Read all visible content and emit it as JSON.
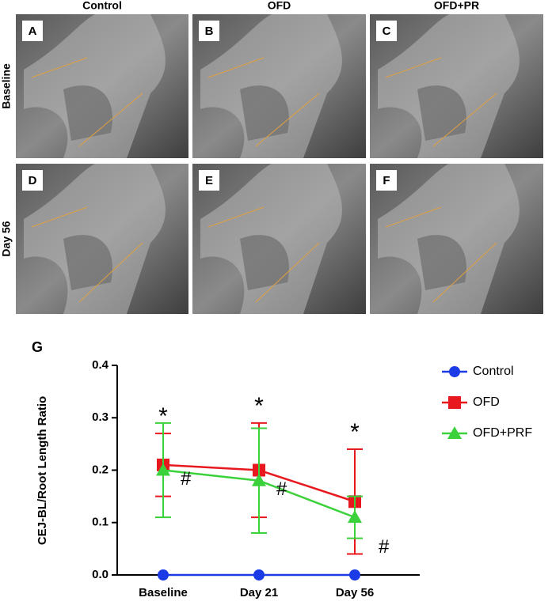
{
  "panels": {
    "columns": [
      "Control",
      "OFD",
      "OFD+PR"
    ],
    "rows": [
      "Baseline",
      "Day 56"
    ],
    "letters": [
      "A",
      "B",
      "C",
      "D",
      "E",
      "F"
    ]
  },
  "chart_data": {
    "type": "line",
    "panel_label": "G",
    "y_label": "CEJ-BL/Root Length Ratio",
    "categories": [
      "Baseline",
      "Day 21",
      "Day 56"
    ],
    "ylim": [
      0,
      0.4
    ],
    "yticks": [
      {
        "value": 0,
        "label": "0.0"
      },
      0.1,
      0.2,
      0.3,
      0.4
    ],
    "legend": "right",
    "series": [
      {
        "name": "Control",
        "color": "#1a3be6",
        "marker": "circle",
        "values": [
          0,
          0,
          0
        ]
      },
      {
        "name": "OFD",
        "color": "#e8191e",
        "marker": "square",
        "values": [
          0.21,
          0.2,
          0.14
        ],
        "errors": [
          0.06,
          0.09,
          0.1
        ],
        "annotations": [
          "*",
          "*",
          "*"
        ]
      },
      {
        "name": "OFD+PRF",
        "color": "#3ad13a",
        "marker": "triangle",
        "values": [
          0.2,
          0.18,
          0.11
        ],
        "errors": [
          0.09,
          0.1,
          0.04
        ],
        "annotations": [
          "#",
          "#",
          "#"
        ]
      }
    ]
  }
}
